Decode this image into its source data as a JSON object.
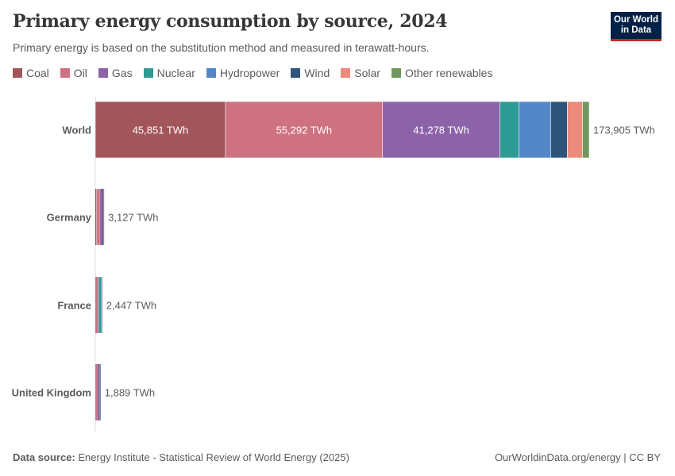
{
  "header": {
    "title": "Primary energy consumption by source, 2024",
    "subtitle": "Primary energy is based on the substitution method and measured in terawatt-hours.",
    "logo": "Our World in Data"
  },
  "footer": {
    "source_label": "Data source:",
    "source": "Energy Institute - Statistical Review of World Energy (2025)",
    "credit": "OurWorldinData.org/energy | CC BY"
  },
  "chart_data": {
    "type": "bar",
    "orientation": "horizontal",
    "stacked": true,
    "unit": "TWh",
    "categories": [
      "World",
      "Germany",
      "France",
      "United Kingdom"
    ],
    "totals": [
      "173,905 TWh",
      "3,127 TWh",
      "2,447 TWh",
      "1,889 TWh"
    ],
    "series": [
      {
        "name": "Coal",
        "color": "#a2555a",
        "values": [
          45851,
          500,
          20,
          20
        ]
      },
      {
        "name": "Oil",
        "color": "#ce7281",
        "values": [
          55292,
          1200,
          800,
          750
        ]
      },
      {
        "name": "Gas",
        "color": "#8c63a8",
        "values": [
          41278,
          800,
          300,
          720
        ]
      },
      {
        "name": "Nuclear",
        "color": "#2d9b94",
        "values": [
          6700,
          0,
          1000,
          110
        ]
      },
      {
        "name": "Hydropower",
        "color": "#5387c8",
        "values": [
          11200,
          50,
          130,
          13
        ]
      },
      {
        "name": "Wind",
        "color": "#2f547c",
        "values": [
          5900,
          350,
          110,
          220
        ]
      },
      {
        "name": "Solar",
        "color": "#ea8b7c",
        "values": [
          5300,
          190,
          60,
          40
        ]
      },
      {
        "name": "Other renewables",
        "color": "#70985f",
        "values": [
          2384,
          37,
          27,
          16
        ]
      }
    ],
    "segment_labels": {
      "World": [
        "45,851 TWh",
        "55,292 TWh",
        "41,278 TWh"
      ]
    },
    "xlim": [
      0,
      173905
    ],
    "grid": false,
    "legend_position": "top"
  }
}
